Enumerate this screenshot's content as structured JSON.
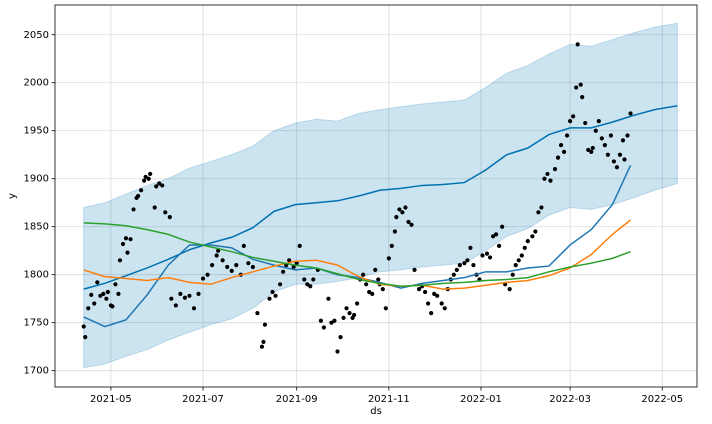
{
  "chart_data": {
    "type": "forecast",
    "xlabel": "ds",
    "ylabel": "y",
    "grid": true,
    "xlim": [
      -7,
      418
    ],
    "ylim": [
      1683,
      2081
    ],
    "xticks": [
      {
        "value": 30,
        "label": "2021-05"
      },
      {
        "value": 91,
        "label": "2021-07"
      },
      {
        "value": 153,
        "label": "2021-09"
      },
      {
        "value": 214,
        "label": "2021-11"
      },
      {
        "value": 275,
        "label": "2022-01"
      },
      {
        "value": 334,
        "label": "2022-03"
      },
      {
        "value": 395,
        "label": "2022-05"
      }
    ],
    "yticks": [
      1700,
      1750,
      1800,
      1850,
      1900,
      1950,
      2000,
      2050
    ],
    "series": [
      {
        "mark": "band",
        "color": "#0072b2",
        "x": [
          12,
          26,
          40,
          54,
          68,
          82,
          96,
          110,
          124,
          138,
          152,
          166,
          180,
          194,
          208,
          222,
          236,
          250,
          264,
          278,
          292,
          306,
          320,
          334,
          348,
          362,
          376,
          390,
          405
        ],
        "lower": [
          1703,
          1707,
          1715,
          1722,
          1732,
          1740,
          1748,
          1754,
          1765,
          1782,
          1790,
          1790,
          1793,
          1797,
          1803,
          1805,
          1808,
          1810,
          1812,
          1825,
          1840,
          1848,
          1862,
          1870,
          1868,
          1873,
          1880,
          1888,
          1895
        ],
        "upper": [
          1870,
          1875,
          1884,
          1893,
          1900,
          1911,
          1918,
          1925,
          1934,
          1950,
          1958,
          1962,
          1960,
          1968,
          1972,
          1975,
          1978,
          1980,
          1982,
          1995,
          2010,
          2018,
          2030,
          2040,
          2038,
          2045,
          2052,
          2058,
          2062
        ]
      },
      {
        "mark": "line",
        "color": "#0072b2",
        "x": [
          12,
          26,
          40,
          54,
          68,
          82,
          96,
          110,
          124,
          138,
          152,
          166,
          180,
          194,
          208,
          222,
          236,
          250,
          264,
          278,
          292,
          306,
          320,
          334,
          348,
          362,
          376,
          390,
          405
        ],
        "values": [
          1785,
          1791,
          1799,
          1807,
          1816,
          1826,
          1833,
          1839,
          1849,
          1866,
          1873,
          1875,
          1877,
          1882,
          1888,
          1890,
          1893,
          1894,
          1896,
          1909,
          1925,
          1932,
          1946,
          1953,
          1953,
          1959,
          1966,
          1972,
          1976
        ]
      },
      {
        "mark": "line",
        "color": "#1f77b4",
        "x": [
          12,
          26,
          40,
          54,
          68,
          82,
          96,
          110,
          124,
          138,
          152,
          166,
          180,
          194,
          208,
          222,
          236,
          250,
          264,
          278,
          292,
          306,
          320,
          334,
          348,
          362,
          374
        ],
        "values": [
          1756,
          1746,
          1753,
          1779,
          1810,
          1831,
          1831,
          1828,
          1816,
          1810,
          1805,
          1807,
          1800,
          1797,
          1792,
          1786,
          1791,
          1794,
          1797,
          1803,
          1803,
          1807,
          1809,
          1831,
          1847,
          1873,
          1914
        ]
      },
      {
        "mark": "line",
        "color": "#ff7f0e",
        "x": [
          12,
          26,
          40,
          54,
          68,
          82,
          96,
          110,
          124,
          138,
          152,
          166,
          180,
          194,
          208,
          222,
          236,
          250,
          264,
          278,
          292,
          306,
          320,
          334,
          348,
          362,
          374
        ],
        "values": [
          1805,
          1798,
          1796,
          1794,
          1797,
          1792,
          1790,
          1797,
          1803,
          1809,
          1814,
          1815,
          1810,
          1798,
          1790,
          1788,
          1789,
          1785,
          1786,
          1789,
          1792,
          1794,
          1799,
          1807,
          1821,
          1842,
          1857
        ]
      },
      {
        "mark": "line",
        "color": "#2ca02c",
        "x": [
          12,
          26,
          40,
          54,
          68,
          82,
          96,
          110,
          124,
          138,
          152,
          166,
          180,
          194,
          208,
          222,
          236,
          250,
          264,
          278,
          292,
          306,
          320,
          334,
          348,
          362,
          374
        ],
        "values": [
          1854,
          1853,
          1851,
          1847,
          1842,
          1834,
          1829,
          1824,
          1818,
          1814,
          1810,
          1807,
          1801,
          1795,
          1791,
          1788,
          1789,
          1791,
          1792,
          1794,
          1795,
          1797,
          1803,
          1808,
          1812,
          1817,
          1824
        ]
      },
      {
        "mark": "scatter",
        "color": "#000000",
        "x": [
          12,
          13,
          15,
          17,
          19,
          21,
          23,
          25,
          27,
          28,
          30,
          31,
          33,
          35,
          36,
          38,
          40,
          41,
          43,
          45,
          47,
          48,
          50,
          52,
          53,
          55,
          56,
          59,
          60,
          62,
          64,
          66,
          69,
          70,
          73,
          76,
          79,
          82,
          85,
          88,
          91,
          94,
          97,
          100,
          101,
          104,
          107,
          110,
          113,
          116,
          118,
          121,
          124,
          127,
          130,
          131,
          132,
          135,
          137,
          139,
          142,
          144,
          146,
          148,
          151,
          153,
          155,
          158,
          160,
          162,
          164,
          167,
          169,
          171,
          174,
          176,
          178,
          180,
          182,
          184,
          186,
          188,
          190,
          191,
          193,
          195,
          197,
          199,
          201,
          203,
          205,
          207,
          208,
          210,
          212,
          214,
          216,
          218,
          219,
          221,
          223,
          225,
          227,
          229,
          231,
          234,
          236,
          238,
          240,
          242,
          244,
          246,
          249,
          251,
          253,
          255,
          257,
          259,
          261,
          264,
          266,
          268,
          270,
          272,
          274,
          276,
          279,
          281,
          283,
          285,
          287,
          289,
          291,
          294,
          296,
          298,
          300,
          302,
          304,
          306,
          309,
          311,
          313,
          315,
          317,
          319,
          321,
          324,
          326,
          328,
          330,
          332,
          334,
          336,
          338,
          339,
          341,
          342,
          344,
          346,
          348,
          349,
          351,
          353,
          355,
          357,
          359,
          361,
          363,
          365,
          367,
          369,
          370,
          372,
          374
        ],
        "values": [
          1746,
          1735,
          1765,
          1779,
          1770,
          1792,
          1778,
          1780,
          1775,
          1782,
          1768,
          1767,
          1790,
          1780,
          1815,
          1832,
          1838,
          1823,
          1837,
          1868,
          1880,
          1882,
          1888,
          1898,
          1902,
          1900,
          1905,
          1870,
          1892,
          1895,
          1893,
          1865,
          1860,
          1775,
          1768,
          1780,
          1776,
          1778,
          1765,
          1780,
          1796,
          1800,
          1810,
          1820,
          1825,
          1815,
          1808,
          1804,
          1810,
          1800,
          1830,
          1812,
          1808,
          1760,
          1725,
          1730,
          1748,
          1775,
          1782,
          1778,
          1790,
          1803,
          1810,
          1815,
          1808,
          1812,
          1830,
          1795,
          1790,
          1788,
          1795,
          1805,
          1752,
          1745,
          1775,
          1750,
          1752,
          1720,
          1735,
          1755,
          1765,
          1760,
          1755,
          1758,
          1770,
          1795,
          1800,
          1790,
          1782,
          1780,
          1805,
          1795,
          1790,
          1785,
          1765,
          1817,
          1830,
          1845,
          1860,
          1868,
          1865,
          1870,
          1855,
          1852,
          1805,
          1785,
          1788,
          1782,
          1770,
          1760,
          1780,
          1778,
          1770,
          1765,
          1785,
          1795,
          1800,
          1805,
          1810,
          1812,
          1815,
          1828,
          1810,
          1800,
          1795,
          1820,
          1822,
          1818,
          1840,
          1842,
          1830,
          1850,
          1790,
          1785,
          1800,
          1810,
          1815,
          1820,
          1828,
          1835,
          1840,
          1845,
          1865,
          1870,
          1900,
          1905,
          1898,
          1910,
          1922,
          1935,
          1928,
          1945,
          1960,
          1965,
          1995,
          2040,
          1998,
          1985,
          1958,
          1930,
          1928,
          1932,
          1950,
          1960,
          1942,
          1935,
          1925,
          1945,
          1918,
          1912,
          1925,
          1940,
          1920,
          1945,
          1968
        ]
      }
    ]
  }
}
